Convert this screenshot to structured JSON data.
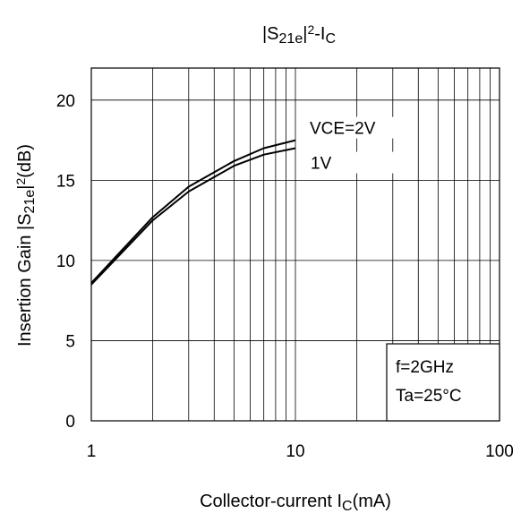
{
  "chart_data": {
    "type": "line",
    "title": {
      "parts": [
        {
          "text": "|S",
          "kind": "normal"
        },
        {
          "text": "21e",
          "kind": "sub"
        },
        {
          "text": "|",
          "kind": "normal"
        },
        {
          "text": "2",
          "kind": "sup"
        },
        {
          "text": "-I",
          "kind": "normal"
        },
        {
          "text": "C",
          "kind": "sub"
        }
      ]
    },
    "xlabel": {
      "parts": [
        {
          "text": "Collector-current I",
          "kind": "normal"
        },
        {
          "text": "C",
          "kind": "sub"
        },
        {
          "text": "(mA)",
          "kind": "normal"
        }
      ]
    },
    "ylabel": {
      "parts": [
        {
          "text": "Insertion Gain |S",
          "kind": "normal"
        },
        {
          "text": "21e",
          "kind": "sub"
        },
        {
          "text": "|",
          "kind": "normal"
        },
        {
          "text": "2",
          "kind": "sup"
        },
        {
          "text": "(dB)",
          "kind": "normal"
        }
      ]
    },
    "x_scale": "log",
    "xlim": [
      1,
      100
    ],
    "ylim": [
      0,
      22
    ],
    "x_ticks": [
      1,
      10,
      100
    ],
    "x_tick_labels": [
      "1",
      "10",
      "100"
    ],
    "y_ticks": [
      0,
      5,
      10,
      15,
      20
    ],
    "y_tick_labels": [
      "0",
      "5",
      "10",
      "15",
      "20"
    ],
    "grid": true,
    "line_color": "#000000",
    "series": [
      {
        "name": "VCE=2V",
        "x": [
          1,
          2,
          3,
          4,
          5,
          7,
          10
        ],
        "y": [
          8.6,
          12.7,
          14.6,
          15.5,
          16.2,
          17.0,
          17.5
        ]
      },
      {
        "name": "1V",
        "x": [
          1,
          2,
          3,
          4,
          5,
          7,
          10
        ],
        "y": [
          8.5,
          12.5,
          14.3,
          15.2,
          15.9,
          16.6,
          17.0
        ]
      }
    ],
    "annotation": {
      "lines": [
        "f=2GHz",
        "Ta=25°C"
      ],
      "position": "bottom-right"
    }
  }
}
